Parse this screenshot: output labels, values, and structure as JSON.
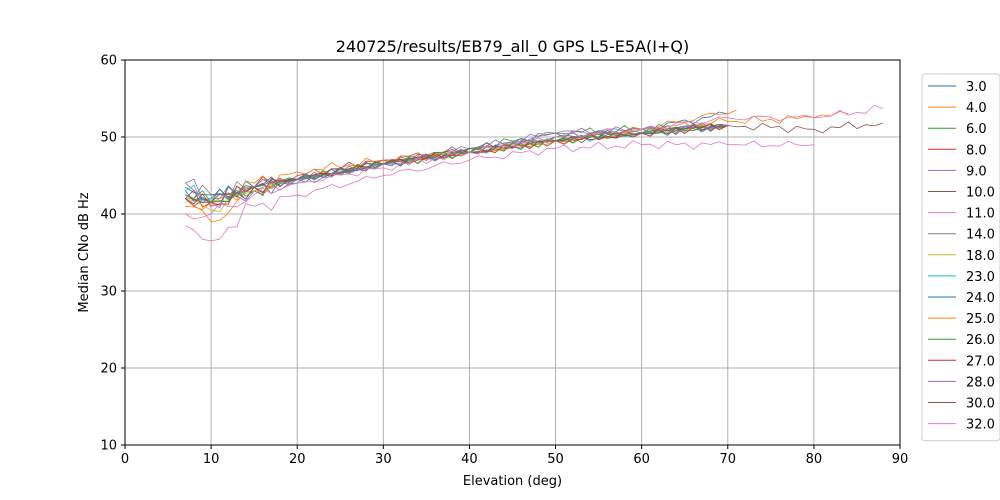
{
  "chart_data": {
    "type": "line",
    "title": "240725/results/EB79_all_0 GPS L5-E5A(I+Q)",
    "xlabel": "Elevation (deg)",
    "ylabel": "Median CNo dB Hz",
    "xlim": [
      0,
      90
    ],
    "ylim": [
      10,
      60
    ],
    "x_ticks": [
      "0",
      "10",
      "20",
      "30",
      "40",
      "50",
      "60",
      "70",
      "80",
      "90"
    ],
    "y_ticks": [
      "10",
      "20",
      "30",
      "40",
      "50",
      "60"
    ],
    "grid": true,
    "legend_position": "right",
    "series": [
      {
        "name": "3.0",
        "color": "#1f77b4",
        "x": [
          7,
          10,
          15,
          20,
          30,
          40,
          50,
          60,
          70
        ],
        "y": [
          43.5,
          42.5,
          43.5,
          44.5,
          46.5,
          48.5,
          50.0,
          51.0,
          53.0
        ]
      },
      {
        "name": "4.0",
        "color": "#ff7f0e",
        "x": [
          7,
          10,
          15,
          20,
          30,
          40,
          50,
          60,
          71
        ],
        "y": [
          42.0,
          39.0,
          43.0,
          44.5,
          46.5,
          48.0,
          49.5,
          51.0,
          53.5
        ]
      },
      {
        "name": "6.0",
        "color": "#2ca02c",
        "x": [
          7,
          10,
          15,
          20,
          30,
          40,
          50,
          60,
          70
        ],
        "y": [
          42.5,
          41.5,
          43.0,
          44.5,
          46.5,
          48.5,
          50.5,
          51.0,
          51.5
        ]
      },
      {
        "name": "8.0",
        "color": "#d62728",
        "x": [
          7,
          10,
          15,
          20,
          30,
          40,
          50,
          60,
          70
        ],
        "y": [
          42.0,
          41.5,
          43.5,
          45.0,
          47.0,
          48.0,
          49.5,
          50.5,
          51.5
        ]
      },
      {
        "name": "9.0",
        "color": "#9467bd",
        "x": [
          7,
          10,
          15,
          20,
          30,
          40,
          50,
          60,
          70
        ],
        "y": [
          44.0,
          41.5,
          43.0,
          44.0,
          46.5,
          48.5,
          50.5,
          51.0,
          51.5
        ]
      },
      {
        "name": "10.0",
        "color": "#8c564b",
        "x": [
          7,
          10,
          15,
          20,
          30,
          40,
          50,
          60,
          70
        ],
        "y": [
          42.0,
          42.0,
          43.5,
          44.5,
          47.0,
          48.5,
          49.5,
          50.5,
          51.5
        ]
      },
      {
        "name": "11.0",
        "color": "#e377c2",
        "x": [
          7,
          10,
          15,
          20,
          30,
          40,
          50,
          60,
          70,
          80
        ],
        "y": [
          38.5,
          36.5,
          41.0,
          42.5,
          45.0,
          47.0,
          48.5,
          49.0,
          49.0,
          49.0
        ]
      },
      {
        "name": "14.0",
        "color": "#7f7f7f",
        "x": [
          7,
          10,
          15,
          20,
          30,
          40,
          50,
          60,
          70
        ],
        "y": [
          42.5,
          42.5,
          43.5,
          44.5,
          46.5,
          48.0,
          49.5,
          50.5,
          51.5
        ]
      },
      {
        "name": "18.0",
        "color": "#bcbd22",
        "x": [
          7,
          10,
          15,
          20,
          30,
          40,
          50,
          60,
          70
        ],
        "y": [
          41.5,
          40.5,
          43.0,
          44.5,
          46.5,
          48.0,
          49.5,
          50.5,
          51.5
        ]
      },
      {
        "name": "23.0",
        "color": "#17becf",
        "x": [
          7,
          10,
          15,
          20,
          30,
          40,
          50,
          60,
          70
        ],
        "y": [
          43.0,
          42.0,
          43.5,
          44.5,
          46.5,
          48.0,
          49.5,
          50.5,
          51.5
        ]
      },
      {
        "name": "24.0",
        "color": "#1f77b4",
        "x": [
          7,
          10,
          15,
          20,
          30,
          40,
          50,
          60,
          70
        ],
        "y": [
          43.0,
          41.5,
          43.5,
          44.5,
          46.5,
          48.0,
          50.0,
          50.5,
          51.5
        ]
      },
      {
        "name": "25.0",
        "color": "#ff7f0e",
        "x": [
          7,
          10,
          15,
          20,
          30,
          40,
          50,
          60,
          70,
          80,
          84
        ],
        "y": [
          41.0,
          41.5,
          44.0,
          45.5,
          47.0,
          48.0,
          49.5,
          51.0,
          52.0,
          52.5,
          53.0
        ]
      },
      {
        "name": "26.0",
        "color": "#2ca02c",
        "x": [
          7,
          10,
          15,
          20,
          30,
          40,
          50,
          60,
          70
        ],
        "y": [
          42.5,
          41.5,
          43.5,
          44.5,
          46.5,
          48.0,
          49.5,
          50.5,
          51.5
        ]
      },
      {
        "name": "27.0",
        "color": "#d62728",
        "x": [
          7,
          10,
          15,
          20,
          30,
          40,
          50,
          60,
          70
        ],
        "y": [
          42.0,
          41.0,
          43.5,
          44.5,
          46.5,
          48.0,
          49.5,
          50.5,
          51.5
        ]
      },
      {
        "name": "28.0",
        "color": "#9467bd",
        "x": [
          7,
          10,
          15,
          20,
          30,
          40,
          50,
          60,
          70
        ],
        "y": [
          44.0,
          41.5,
          43.5,
          44.5,
          46.5,
          48.0,
          50.5,
          51.0,
          51.5
        ]
      },
      {
        "name": "30.0",
        "color": "#8c564b",
        "x": [
          7,
          10,
          15,
          20,
          30,
          40,
          50,
          60,
          70,
          80,
          88
        ],
        "y": [
          42.0,
          41.5,
          43.5,
          44.5,
          46.5,
          48.0,
          49.5,
          50.5,
          51.5,
          51.0,
          51.8
        ]
      },
      {
        "name": "32.0",
        "color": "#e377c2",
        "x": [
          7,
          10,
          15,
          20,
          30,
          40,
          50,
          60,
          70,
          80,
          88
        ],
        "y": [
          40.0,
          40.0,
          42.5,
          44.0,
          46.0,
          48.0,
          50.0,
          51.0,
          52.5,
          52.5,
          53.7
        ]
      }
    ]
  }
}
